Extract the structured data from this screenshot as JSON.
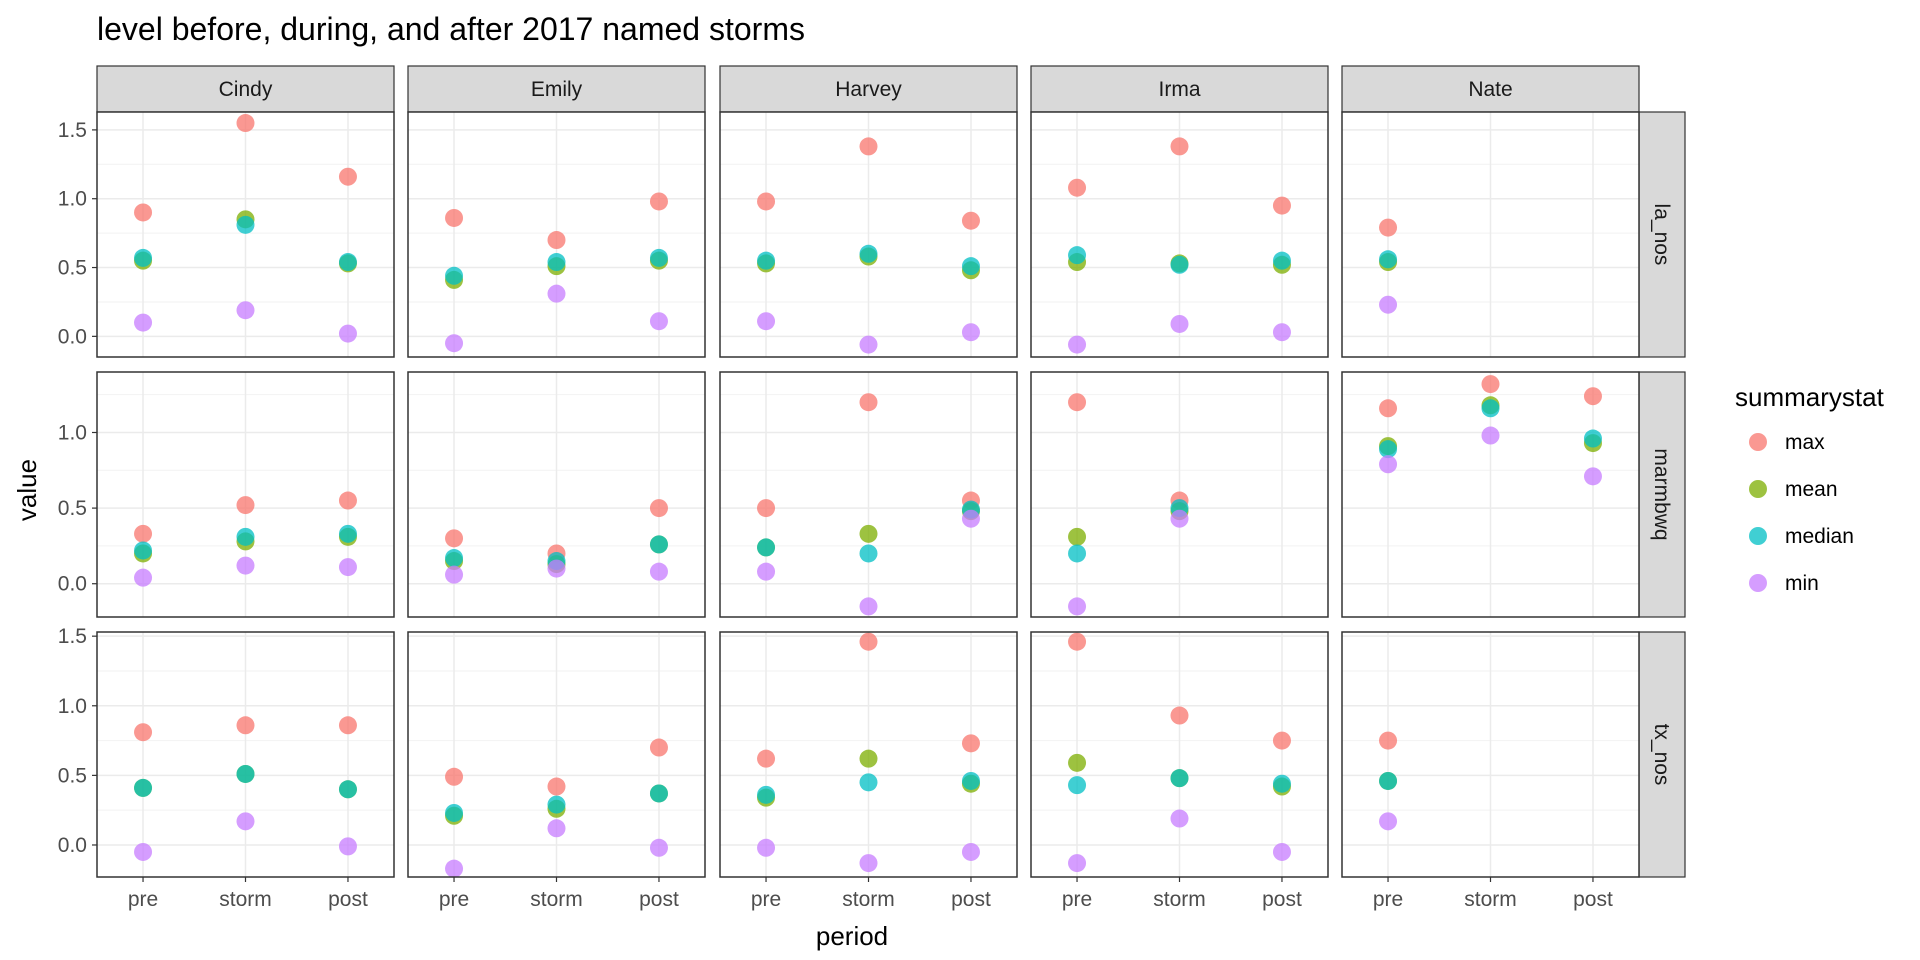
{
  "chart_data": {
    "type": "scatter",
    "title": "level before, during, and after 2017 named storms",
    "xlabel": "period",
    "ylabel": "value",
    "categories": [
      "pre",
      "storm",
      "post"
    ],
    "columns": [
      "Cindy",
      "Emily",
      "Harvey",
      "Irma",
      "Nate"
    ],
    "rows": [
      {
        "name": "la_nos",
        "ylim": [
          -0.15,
          1.63
        ],
        "yticks": [
          "0.0",
          "0.5",
          "1.0",
          "1.5"
        ]
      },
      {
        "name": "marmbwq",
        "ylim": [
          -0.22,
          1.4
        ],
        "yticks": [
          "0.0",
          "0.5",
          "1.0"
        ]
      },
      {
        "name": "tx_nos",
        "ylim": [
          -0.23,
          1.53
        ],
        "yticks": [
          "0.0",
          "0.5",
          "1.0",
          "1.5"
        ]
      }
    ],
    "legend": {
      "title": "summarystat",
      "position": "right",
      "items": [
        {
          "name": "max",
          "color": "#F8766D"
        },
        {
          "name": "mean",
          "color": "#7CAE00"
        },
        {
          "name": "median",
          "color": "#00BFC4"
        },
        {
          "name": "min",
          "color": "#C77CFF"
        }
      ]
    },
    "grid": true,
    "data": {
      "la_nos": {
        "Cindy": {
          "max": [
            0.9,
            1.55,
            1.16
          ],
          "mean": [
            0.55,
            0.85,
            0.53
          ],
          "median": [
            0.57,
            0.81,
            0.54
          ],
          "min": [
            0.1,
            0.19,
            0.02
          ]
        },
        "Emily": {
          "max": [
            0.86,
            0.7,
            0.98
          ],
          "mean": [
            0.41,
            0.51,
            0.55
          ],
          "median": [
            0.44,
            0.54,
            0.57
          ],
          "min": [
            -0.05,
            0.31,
            0.11
          ]
        },
        "Harvey": {
          "max": [
            0.98,
            1.38,
            0.84
          ],
          "mean": [
            0.53,
            0.58,
            0.48
          ],
          "median": [
            0.55,
            0.6,
            0.51
          ],
          "min": [
            0.11,
            -0.06,
            0.03
          ]
        },
        "Irma": {
          "max": [
            1.08,
            1.38,
            0.95
          ],
          "mean": [
            0.54,
            0.53,
            0.52
          ],
          "median": [
            0.59,
            0.52,
            0.55
          ],
          "min": [
            -0.06,
            0.09,
            0.03
          ]
        },
        "Nate": {
          "max": [
            0.79,
            null,
            null
          ],
          "mean": [
            0.54,
            null,
            null
          ],
          "median": [
            0.56,
            null,
            null
          ],
          "min": [
            0.23,
            null,
            null
          ]
        }
      },
      "marmbwq": {
        "Cindy": {
          "max": [
            0.33,
            0.52,
            0.55
          ],
          "mean": [
            0.2,
            0.28,
            0.31
          ],
          "median": [
            0.22,
            0.31,
            0.33
          ],
          "min": [
            0.04,
            0.12,
            0.11
          ]
        },
        "Emily": {
          "max": [
            0.3,
            0.2,
            0.5
          ],
          "mean": [
            0.15,
            0.13,
            0.26
          ],
          "median": [
            0.17,
            0.15,
            0.26
          ],
          "min": [
            0.06,
            0.1,
            0.08
          ]
        },
        "Harvey": {
          "max": [
            0.5,
            1.2,
            0.55
          ],
          "mean": [
            0.24,
            0.33,
            0.48
          ],
          "median": [
            0.24,
            0.2,
            0.49
          ],
          "min": [
            0.08,
            -0.15,
            0.43
          ]
        },
        "Irma": {
          "max": [
            1.2,
            0.55,
            null
          ],
          "mean": [
            0.31,
            0.48,
            null
          ],
          "median": [
            0.2,
            0.5,
            null
          ],
          "min": [
            -0.15,
            0.43,
            null
          ]
        },
        "Nate": {
          "max": [
            1.16,
            1.32,
            1.24
          ],
          "mean": [
            0.91,
            1.18,
            0.93
          ],
          "median": [
            0.89,
            1.16,
            0.96
          ],
          "min": [
            0.79,
            0.98,
            0.71
          ]
        }
      },
      "tx_nos": {
        "Cindy": {
          "max": [
            0.81,
            0.86,
            0.86
          ],
          "mean": [
            0.41,
            0.51,
            0.4
          ],
          "median": [
            0.41,
            0.51,
            0.4
          ],
          "min": [
            -0.05,
            0.17,
            -0.01
          ]
        },
        "Emily": {
          "max": [
            0.49,
            0.42,
            0.7
          ],
          "mean": [
            0.21,
            0.26,
            0.37
          ],
          "median": [
            0.23,
            0.29,
            0.37
          ],
          "min": [
            -0.17,
            0.12,
            -0.02
          ]
        },
        "Harvey": {
          "max": [
            0.62,
            1.46,
            0.73
          ],
          "mean": [
            0.34,
            0.62,
            0.44
          ],
          "median": [
            0.36,
            0.45,
            0.46
          ],
          "min": [
            -0.02,
            -0.13,
            -0.05
          ]
        },
        "Irma": {
          "max": [
            1.46,
            0.93,
            0.75
          ],
          "mean": [
            0.59,
            0.48,
            0.42
          ],
          "median": [
            0.43,
            0.48,
            0.44
          ],
          "min": [
            -0.13,
            0.19,
            -0.05
          ]
        },
        "Nate": {
          "max": [
            0.75,
            null,
            null
          ],
          "mean": [
            0.46,
            null,
            null
          ],
          "median": [
            0.46,
            null,
            null
          ],
          "min": [
            0.17,
            null,
            null
          ]
        }
      }
    }
  }
}
